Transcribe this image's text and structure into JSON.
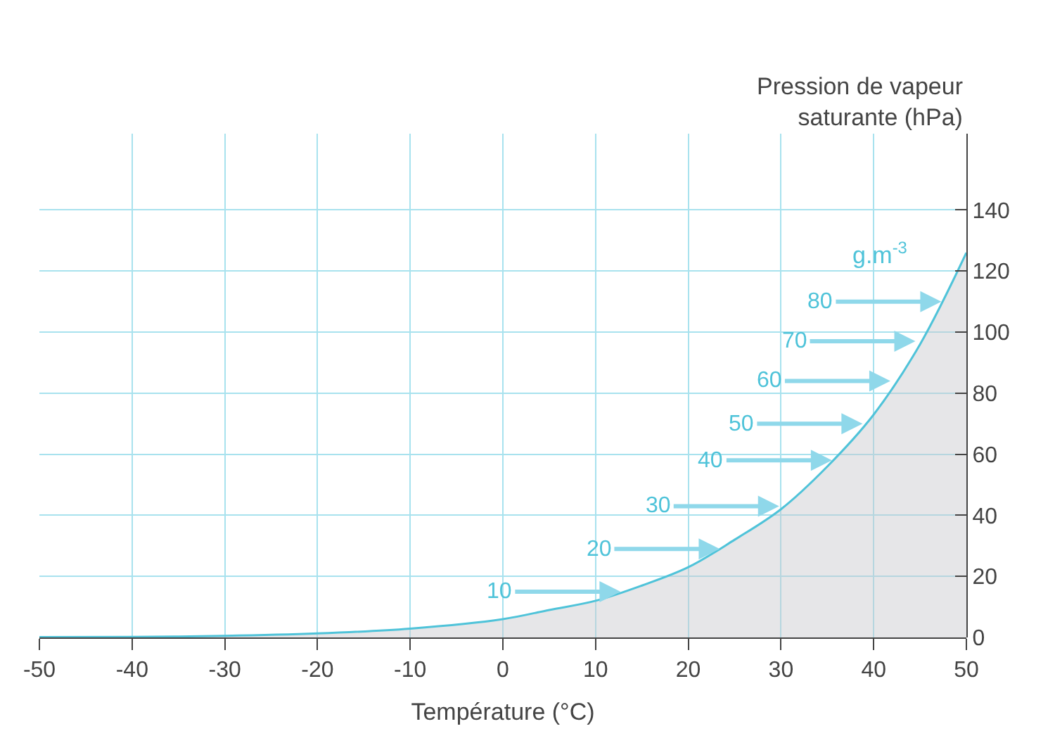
{
  "chart_data": {
    "type": "area",
    "xlabel": "Température (°C)",
    "ylabel": "Pression de vapeur saturante (hPa)",
    "x": [
      -50,
      -40,
      -30,
      -20,
      -10,
      0,
      5,
      10,
      15,
      20,
      25,
      30,
      35,
      40,
      45,
      50
    ],
    "series": [
      {
        "color": "#4fc3d9",
        "values": [
          0.1,
          0.2,
          0.5,
          1.3,
          2.9,
          6,
          9,
          12,
          17,
          23,
          32,
          42,
          56,
          73,
          96,
          126
        ]
      }
    ],
    "xlim": [
      -50,
      50
    ],
    "xticks": [
      -50,
      -40,
      -30,
      -20,
      -10,
      0,
      10,
      20,
      30,
      40,
      50
    ],
    "ylim": [
      0,
      165
    ],
    "yticks": [
      0,
      20,
      40,
      60,
      80,
      100,
      120,
      140
    ],
    "grid": true,
    "legend": false,
    "annotations": [
      "g.m$^{-3}$",
      {
        "text": "10",
        "x": 12.7,
        "y": 15
      },
      {
        "text": "20",
        "x": 23.4,
        "y": 29
      },
      {
        "text": "30",
        "x": 29.8,
        "y": 43
      },
      {
        "text": "40",
        "x": 35.5,
        "y": 58
      },
      {
        "text": "50",
        "x": 38.8,
        "y": 70
      },
      {
        "text": "60",
        "x": 41.8,
        "y": 84
      },
      {
        "text": "70",
        "x": 44.5,
        "y": 97
      },
      {
        "text": "80",
        "x": 47.3,
        "y": 110
      }
    ]
  }
}
